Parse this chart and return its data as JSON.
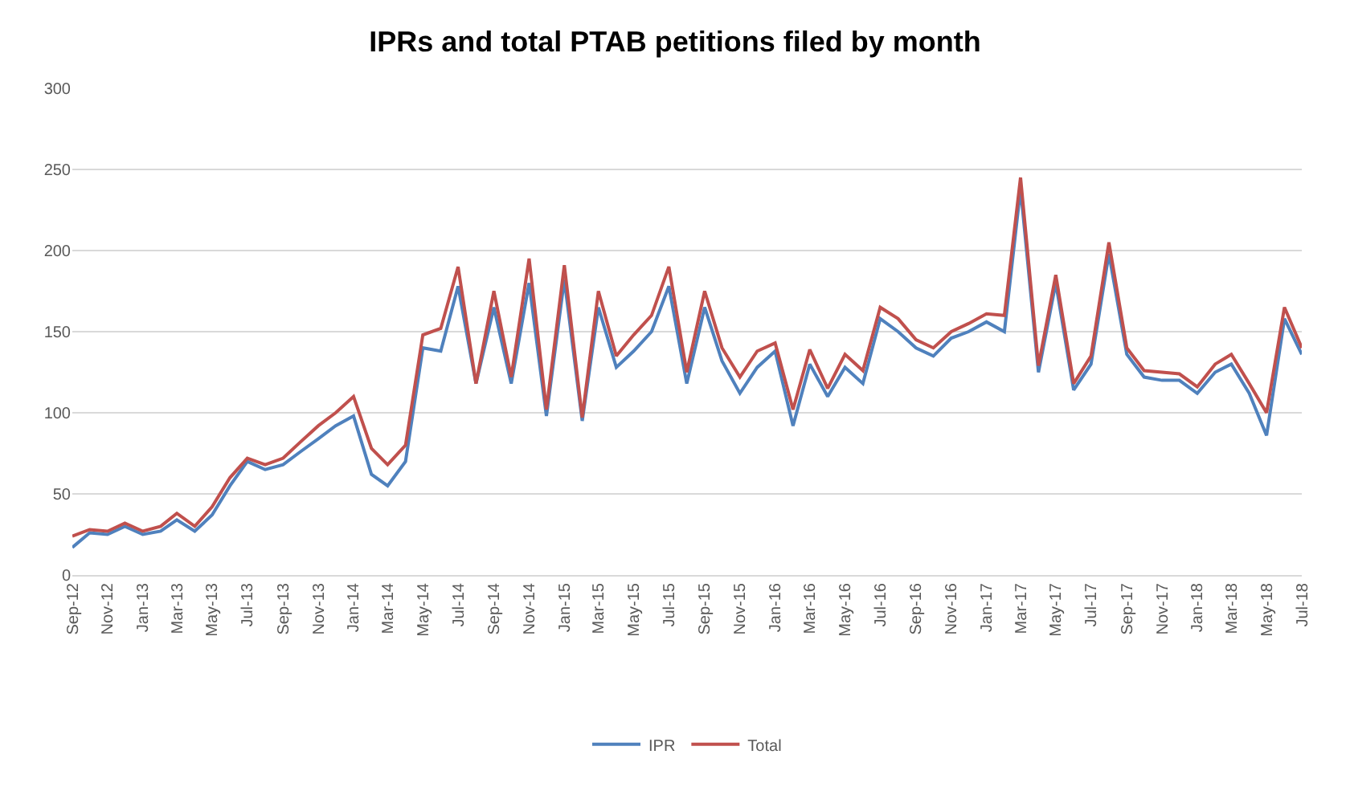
{
  "chart_data": {
    "type": "line",
    "title": "IPRs and total PTAB petitions filed by month",
    "x": [
      "2012-09",
      "2012-10",
      "2012-11",
      "2012-12",
      "2013-01",
      "2013-02",
      "2013-03",
      "2013-04",
      "2013-05",
      "2013-06",
      "2013-07",
      "2013-08",
      "2013-09",
      "2013-10",
      "2013-11",
      "2013-12",
      "2014-01",
      "2014-02",
      "2014-03",
      "2014-04",
      "2014-05",
      "2014-06",
      "2014-07",
      "2014-08",
      "2014-09",
      "2014-10",
      "2014-11",
      "2014-12",
      "2015-01",
      "2015-02",
      "2015-03",
      "2015-04",
      "2015-05",
      "2015-06",
      "2015-07",
      "2015-08",
      "2015-09",
      "2015-10",
      "2015-11",
      "2015-12",
      "2016-01",
      "2016-02",
      "2016-03",
      "2016-04",
      "2016-05",
      "2016-06",
      "2016-07",
      "2016-08",
      "2016-09",
      "2016-10",
      "2016-11",
      "2016-12",
      "2017-01",
      "2017-02",
      "2017-03",
      "2017-04",
      "2017-05",
      "2017-06",
      "2017-07",
      "2017-08",
      "2017-09",
      "2017-10",
      "2017-11",
      "2017-12",
      "2018-01",
      "2018-02",
      "2018-03",
      "2018-04",
      "2018-05",
      "2018-06",
      "2018-07"
    ],
    "series": [
      {
        "name": "IPR",
        "color": "#4f81bd",
        "values": [
          17,
          26,
          25,
          30,
          25,
          27,
          34,
          27,
          37,
          55,
          70,
          65,
          68,
          76,
          84,
          92,
          98,
          62,
          55,
          70,
          140,
          138,
          178,
          118,
          165,
          118,
          180,
          98,
          182,
          95,
          165,
          128,
          138,
          150,
          178,
          118,
          165,
          132,
          112,
          128,
          138,
          92,
          130,
          110,
          128,
          118,
          158,
          150,
          140,
          135,
          146,
          150,
          156,
          150,
          238,
          125,
          180,
          114,
          130,
          198,
          136,
          122,
          120,
          120,
          112,
          125,
          130,
          112,
          86,
          158,
          136
        ]
      },
      {
        "name": "Total",
        "color": "#c0504d",
        "values": [
          24,
          28,
          27,
          32,
          27,
          30,
          38,
          30,
          42,
          60,
          72,
          68,
          72,
          82,
          92,
          100,
          110,
          78,
          68,
          80,
          148,
          152,
          190,
          118,
          175,
          122,
          195,
          102,
          191,
          97,
          175,
          135,
          148,
          160,
          190,
          125,
          175,
          140,
          122,
          138,
          143,
          102,
          139,
          115,
          136,
          126,
          165,
          158,
          145,
          140,
          150,
          155,
          161,
          160,
          245,
          129,
          185,
          118,
          135,
          205,
          140,
          126,
          125,
          124,
          116,
          130,
          136,
          118,
          100,
          165,
          140
        ]
      }
    ],
    "xlim": [
      "2012-09",
      "2018-07"
    ],
    "xticks": [
      {
        "value": "2012-09",
        "label": "Sep-12"
      },
      {
        "value": "2012-11",
        "label": "Nov-12"
      },
      {
        "value": "2013-01",
        "label": "Jan-13"
      },
      {
        "value": "2013-03",
        "label": "Mar-13"
      },
      {
        "value": "2013-05",
        "label": "May-13"
      },
      {
        "value": "2013-07",
        "label": "Jul-13"
      },
      {
        "value": "2013-09",
        "label": "Sep-13"
      },
      {
        "value": "2013-11",
        "label": "Nov-13"
      },
      {
        "value": "2014-01",
        "label": "Jan-14"
      },
      {
        "value": "2014-03",
        "label": "Mar-14"
      },
      {
        "value": "2014-05",
        "label": "May-14"
      },
      {
        "value": "2014-07",
        "label": "Jul-14"
      },
      {
        "value": "2014-09",
        "label": "Sep-14"
      },
      {
        "value": "2014-11",
        "label": "Nov-14"
      },
      {
        "value": "2015-01",
        "label": "Jan-15"
      },
      {
        "value": "2015-03",
        "label": "Mar-15"
      },
      {
        "value": "2015-05",
        "label": "May-15"
      },
      {
        "value": "2015-07",
        "label": "Jul-15"
      },
      {
        "value": "2015-09",
        "label": "Sep-15"
      },
      {
        "value": "2015-11",
        "label": "Nov-15"
      },
      {
        "value": "2016-01",
        "label": "Jan-16"
      },
      {
        "value": "2016-03",
        "label": "Mar-16"
      },
      {
        "value": "2016-05",
        "label": "May-16"
      },
      {
        "value": "2016-07",
        "label": "Jul-16"
      },
      {
        "value": "2016-09",
        "label": "Sep-16"
      },
      {
        "value": "2016-11",
        "label": "Nov-16"
      },
      {
        "value": "2017-01",
        "label": "Jan-17"
      },
      {
        "value": "2017-03",
        "label": "Mar-17"
      },
      {
        "value": "2017-05",
        "label": "May-17"
      },
      {
        "value": "2017-07",
        "label": "Jul-17"
      },
      {
        "value": "2017-09",
        "label": "Sep-17"
      },
      {
        "value": "2017-11",
        "label": "Nov-17"
      },
      {
        "value": "2018-01",
        "label": "Jan-18"
      },
      {
        "value": "2018-03",
        "label": "Mar-18"
      },
      {
        "value": "2018-05",
        "label": "May-18"
      },
      {
        "value": "2018-07",
        "label": "Jul-18"
      }
    ],
    "ylim": [
      0,
      300
    ],
    "yticks": [
      0,
      50,
      100,
      150,
      200,
      250,
      300
    ],
    "grid": "y",
    "legend": "bottom",
    "marker": "none",
    "line_style": "solid"
  }
}
